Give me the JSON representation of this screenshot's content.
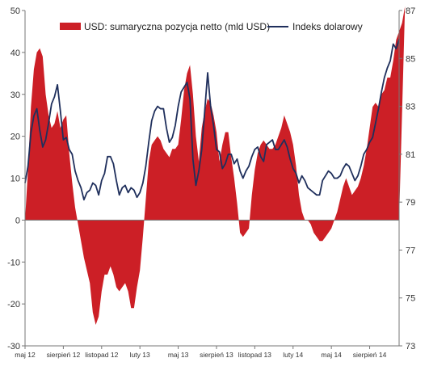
{
  "chart_data": {
    "type": "area+line",
    "legend": [
      {
        "label": "USD: sumaryczna pozycja netto (mld USD)",
        "color": "#cc1f26",
        "kind": "area"
      },
      {
        "label": "Indeks dolarowy",
        "color": "#1f2f5c",
        "kind": "line"
      }
    ],
    "legend_placement": "top",
    "grid": false,
    "left_axis": {
      "min": -30,
      "max": 50,
      "ticks": [
        "-30",
        "-20",
        "-10",
        "0",
        "10",
        "20",
        "30",
        "40",
        "50"
      ]
    },
    "right_axis": {
      "min": 73,
      "max": 87,
      "ticks": [
        "73",
        "75",
        "77",
        "79",
        "81",
        "83",
        "85",
        "87"
      ]
    },
    "x_tick_labels": [
      "maj 12",
      "sierpień 12",
      "listopad 12",
      "luty 13",
      "maj 13",
      "sierpień 13",
      "listopad 13",
      "luty 14",
      "maj 14",
      "sierpień 14"
    ],
    "x_tick_index": [
      0,
      13,
      26,
      39,
      52,
      65,
      78,
      91,
      104,
      117
    ],
    "n_points": 128,
    "series": [
      {
        "name": "USD: sumaryczna pozycja netto (mld USD)",
        "axis": "left",
        "values": [
          0,
          12,
          27,
          36,
          40,
          41,
          39,
          30,
          25,
          22,
          23,
          26,
          22,
          24,
          25,
          16,
          9,
          3,
          -1,
          -5,
          -9,
          -12,
          -15,
          -22,
          -25,
          -23,
          -17,
          -13,
          -13,
          -11,
          -13,
          -16,
          -17,
          -16,
          -15,
          -17,
          -21,
          -21,
          -16,
          -12,
          -4,
          5,
          14,
          18,
          19,
          20,
          19,
          17,
          16,
          15,
          17,
          17,
          18,
          24,
          31,
          35,
          37,
          30,
          20,
          14,
          22,
          26,
          29,
          28,
          25,
          21,
          14,
          18,
          21,
          21,
          15,
          10,
          4,
          -3,
          -4,
          -3,
          -2,
          6,
          12,
          16,
          18,
          19,
          18,
          17,
          17,
          18,
          20,
          22,
          25,
          23,
          21,
          18,
          13,
          6,
          2,
          0,
          0,
          -1,
          -3,
          -4,
          -5,
          -5,
          -4,
          -3,
          -2,
          0,
          2,
          5,
          8,
          10,
          8,
          6,
          7,
          8,
          10,
          13,
          17,
          22,
          27,
          28,
          27,
          30,
          31,
          34,
          34,
          38,
          43,
          45,
          47,
          51
        ]
      },
      {
        "name": "Indeks dolarowy",
        "axis": "right",
        "values": [
          79.8,
          80.5,
          81.9,
          82.6,
          82.9,
          82.0,
          81.3,
          81.6,
          82.3,
          83.1,
          83.4,
          83.9,
          82.8,
          81.6,
          81.7,
          81.2,
          81.0,
          80.3,
          79.9,
          79.6,
          79.1,
          79.4,
          79.5,
          79.8,
          79.7,
          79.3,
          79.9,
          80.2,
          80.9,
          80.9,
          80.6,
          79.9,
          79.3,
          79.6,
          79.7,
          79.4,
          79.6,
          79.5,
          79.2,
          79.4,
          79.8,
          80.5,
          81.5,
          82.4,
          82.8,
          83.0,
          82.9,
          82.9,
          82.1,
          81.5,
          81.7,
          82.2,
          83.0,
          83.6,
          83.8,
          84.0,
          83.3,
          80.8,
          79.7,
          80.3,
          81.2,
          82.8,
          84.4,
          83.0,
          82.2,
          81.2,
          81.1,
          80.4,
          80.6,
          81.0,
          81.0,
          80.6,
          80.8,
          80.3,
          80.0,
          80.3,
          80.5,
          80.9,
          81.2,
          81.3,
          80.9,
          80.7,
          81.4,
          81.5,
          81.6,
          81.2,
          81.2,
          81.4,
          81.6,
          81.3,
          80.8,
          80.4,
          80.2,
          79.8,
          80.1,
          79.9,
          79.6,
          79.5,
          79.4,
          79.3,
          79.3,
          79.9,
          80.1,
          80.3,
          80.2,
          80.0,
          80.0,
          80.1,
          80.4,
          80.6,
          80.5,
          80.2,
          79.9,
          80.1,
          80.5,
          81.0,
          81.2,
          81.5,
          81.7,
          82.3,
          82.9,
          83.6,
          84.2,
          84.6,
          84.9,
          85.6,
          85.4,
          85.8
        ]
      }
    ]
  }
}
